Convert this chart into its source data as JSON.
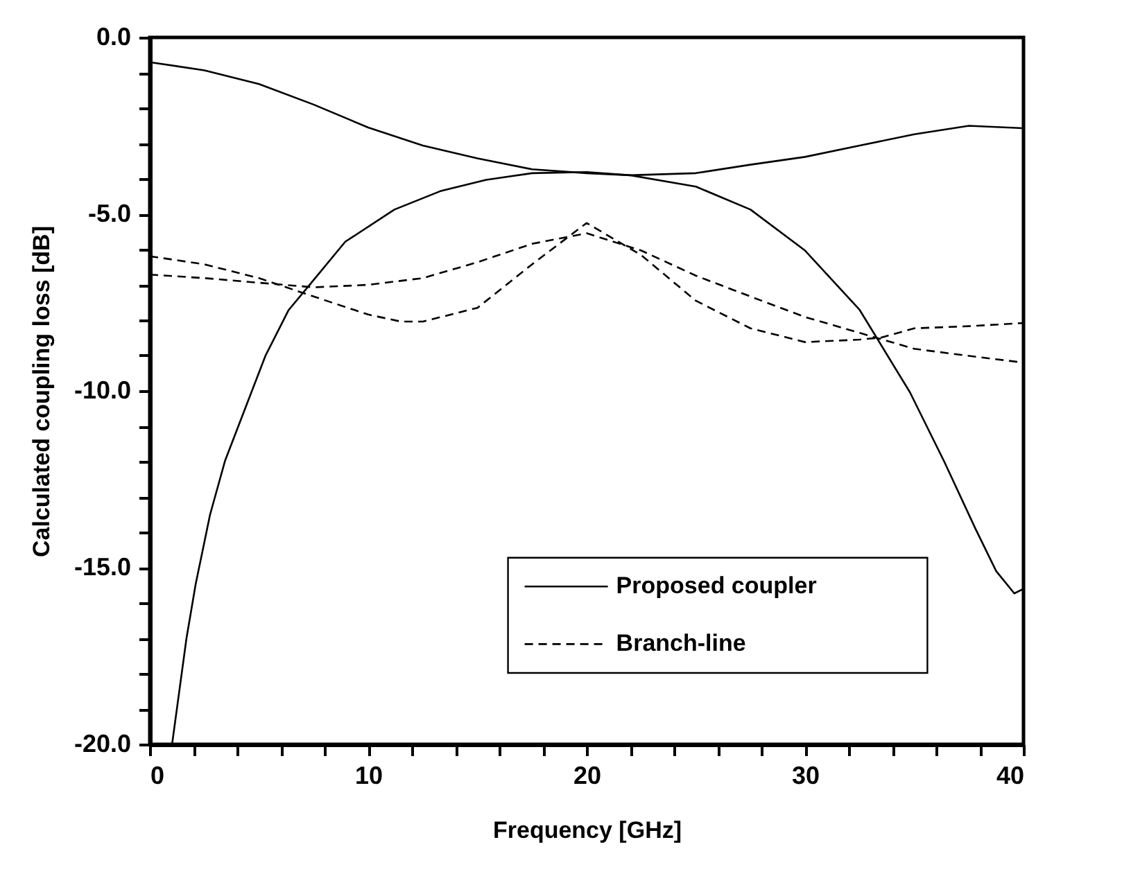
{
  "chart_data": {
    "type": "line",
    "xlabel": "Frequency   [GHz]",
    "ylabel": "Calculated coupling loss  [dB]",
    "xlim": [
      0,
      40
    ],
    "ylim": [
      -20,
      0
    ],
    "xticks": [
      0,
      {
        "value": 2,
        "label": null
      },
      {
        "value": 4,
        "label": null
      },
      {
        "value": 6,
        "label": null
      },
      {
        "value": 8,
        "label": null
      },
      10,
      {
        "value": 12,
        "label": null
      },
      {
        "value": 14,
        "label": null
      },
      {
        "value": 16,
        "label": null
      },
      {
        "value": 18,
        "label": null
      },
      20,
      {
        "value": 22,
        "label": null
      },
      {
        "value": 24,
        "label": null
      },
      {
        "value": 26,
        "label": null
      },
      {
        "value": 28,
        "label": null
      },
      30,
      {
        "value": 32,
        "label": null
      },
      {
        "value": 34,
        "label": null
      },
      {
        "value": 36,
        "label": null
      },
      {
        "value": 38,
        "label": null
      },
      40
    ],
    "yticks": [
      {
        "value": -20,
        "label": "-20.0"
      },
      {
        "value": -19,
        "label": null
      },
      {
        "value": -18,
        "label": null
      },
      {
        "value": -17,
        "label": null
      },
      {
        "value": -16,
        "label": null
      },
      {
        "value": -15,
        "label": "-15.0"
      },
      {
        "value": -14,
        "label": null
      },
      {
        "value": -13,
        "label": null
      },
      {
        "value": -12,
        "label": null
      },
      {
        "value": -11,
        "label": null
      },
      {
        "value": -10,
        "label": "-10.0"
      },
      {
        "value": -9,
        "label": null
      },
      {
        "value": -8,
        "label": null
      },
      {
        "value": -7,
        "label": null
      },
      {
        "value": -6,
        "label": null
      },
      {
        "value": -5,
        "label": "-5.0"
      },
      {
        "value": -4,
        "label": null
      },
      {
        "value": -3,
        "label": null
      },
      {
        "value": -2,
        "label": null
      },
      {
        "value": -1,
        "label": null
      },
      {
        "value": 0,
        "label": "0.0"
      }
    ],
    "grid": false,
    "legend": "bottom right",
    "series": [
      {
        "name": "Proposed coupler",
        "color": "#000000",
        "line_style": "solid",
        "x": [
          0,
          2.5,
          5,
          7.5,
          10,
          12.5,
          15,
          17.5,
          20,
          22,
          25,
          27.5,
          30,
          32.5,
          35,
          37.5,
          40
        ],
        "values": [
          -0.7,
          -0.93,
          -1.32,
          -1.9,
          -2.55,
          -3.06,
          -3.42,
          -3.73,
          -3.84,
          -3.9,
          -3.84,
          -3.6,
          -3.38,
          -3.06,
          -2.74,
          -2.5,
          -2.57
        ]
      },
      {
        "color": "#000000",
        "line_style": "solid",
        "x": [
          1.02,
          1.68,
          2.1,
          2.76,
          3.45,
          4.49,
          5.3,
          6.36,
          7.4,
          8.95,
          11.2,
          13.3,
          15.4,
          17.5,
          20,
          22,
          25,
          27.5,
          30,
          32.5,
          34.8,
          36.37,
          37.8,
          38.75,
          39.58,
          40
        ],
        "values": [
          -20,
          -17,
          -15.47,
          -13.5,
          -11.97,
          -10.3,
          -9,
          -7.71,
          -6.94,
          -5.78,
          -4.87,
          -4.35,
          -4.03,
          -3.84,
          -3.81,
          -3.9,
          -4.22,
          -4.87,
          -6.03,
          -7.71,
          -10.04,
          -12,
          -13.9,
          -15.1,
          -15.73,
          -15.6
        ]
      },
      {
        "name": "Branch-line",
        "color": "#000000",
        "line_style": "dashed",
        "x": [
          0,
          2.5,
          5,
          7.5,
          10,
          11.5,
          12.5,
          15,
          17.5,
          20,
          22.5,
          25,
          27.5,
          30,
          32.5,
          33.5,
          35,
          37.5,
          40
        ],
        "values": [
          -6.19,
          -6.42,
          -6.81,
          -7.33,
          -7.84,
          -8.04,
          -8.04,
          -7.65,
          -6.42,
          -5.25,
          -6.16,
          -7.45,
          -8.23,
          -8.62,
          -8.55,
          -8.49,
          -8.23,
          -8.17,
          -8.08
        ]
      },
      {
        "color": "#000000",
        "line_style": "dashed",
        "x": [
          0,
          2.5,
          5,
          7.5,
          10,
          12.5,
          15,
          17.5,
          20,
          22.5,
          25,
          27.5,
          30,
          32.5,
          35,
          37.5,
          40
        ],
        "values": [
          -6.71,
          -6.81,
          -6.94,
          -7.07,
          -7.0,
          -6.81,
          -6.36,
          -5.84,
          -5.54,
          -6.03,
          -6.74,
          -7.33,
          -7.91,
          -8.36,
          -8.81,
          -9.01,
          -9.2
        ]
      }
    ]
  }
}
